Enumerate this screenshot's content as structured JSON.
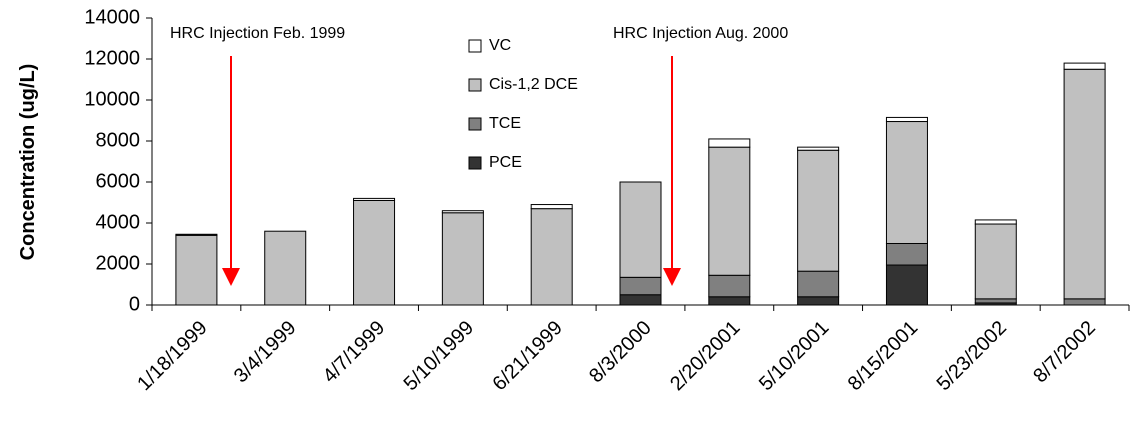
{
  "chart_data": {
    "type": "stacked_bar",
    "ylabel": "Concentration (ug/L)",
    "categories": [
      "1/18/1999",
      "3/4/1999",
      "4/7/1999",
      "5/10/1999",
      "6/21/1999",
      "8/3/2000",
      "2/20/2001",
      "5/10/2001",
      "8/15/2001",
      "5/23/2002",
      "8/7/2002"
    ],
    "series": [
      {
        "name": "PCE",
        "color": "#333333",
        "values": [
          0,
          0,
          0,
          0,
          0,
          500,
          400,
          400,
          1950,
          100,
          0
        ]
      },
      {
        "name": "TCE",
        "color": "#808080",
        "values": [
          0,
          0,
          0,
          0,
          0,
          850,
          1050,
          1250,
          1050,
          200,
          300
        ]
      },
      {
        "name": "Cis-1,2 DCE",
        "color": "#c0c0c0",
        "values": [
          3400,
          3600,
          5100,
          4500,
          4700,
          4650,
          6250,
          5900,
          5950,
          3650,
          11200
        ]
      },
      {
        "name": "VC",
        "color": "#ffffff",
        "values": [
          50,
          0,
          100,
          100,
          200,
          0,
          400,
          150,
          200,
          200,
          300
        ]
      }
    ],
    "ylim": [
      0,
      14000
    ],
    "yticks": [
      0,
      2000,
      4000,
      6000,
      8000,
      10000,
      12000,
      14000
    ],
    "annotations": [
      "HRC Injection Feb. 1999",
      "HRC Injection Aug. 2000"
    ],
    "annotation_color": "#ff0000"
  }
}
